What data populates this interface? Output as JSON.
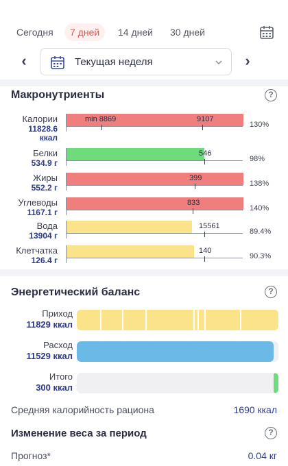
{
  "tabs": [
    {
      "label": "Сегодня"
    },
    {
      "label": "7 дней"
    },
    {
      "label": "14 дней"
    },
    {
      "label": "30 дней"
    }
  ],
  "week_selector": {
    "label": "Текущая неделя"
  },
  "macros": {
    "title": "Макронутриенты",
    "rows": [
      {
        "name": "Калории",
        "value_line1": "11828.6",
        "value_line2": "ккал",
        "min_label": "min 8869",
        "target": "9107",
        "percent": "130%",
        "fill_fraction": 1.0,
        "color": "#ef7e7c"
      },
      {
        "name": "Белки",
        "value_line1": "534.9 г",
        "value_line2": "",
        "min_label": "",
        "target": "546",
        "percent": "98%",
        "fill_fraction": 0.78,
        "color": "#6fdc7c"
      },
      {
        "name": "Жиры",
        "value_line1": "552.2 г",
        "value_line2": "",
        "min_label": "",
        "target": "399",
        "percent": "138%",
        "fill_fraction": 1.0,
        "color": "#ef7e7c"
      },
      {
        "name": "Углеводы",
        "value_line1": "1167.1 г",
        "value_line2": "",
        "min_label": "",
        "target": "833",
        "percent": "140%",
        "fill_fraction": 1.0,
        "color": "#ef7e7c"
      },
      {
        "name": "Вода",
        "value_line1": "13904 г",
        "value_line2": "",
        "min_label": "",
        "target": "15561",
        "percent": "89.4%",
        "fill_fraction": 0.71,
        "color": "#fbe38a"
      },
      {
        "name": "Клетчатка",
        "value_line1": "126.4 г",
        "value_line2": "",
        "min_label": "",
        "target": "140",
        "percent": "90.3%",
        "fill_fraction": 0.72,
        "color": "#fbe38a"
      }
    ]
  },
  "energy": {
    "title": "Энергетический баланс",
    "rows": [
      {
        "name": "Приход",
        "value": "11829 ккал",
        "fill_fraction": 1.0
      },
      {
        "name": "Расход",
        "value": "11529 ккал",
        "fill_fraction": 0.975
      },
      {
        "name": "Итого",
        "value": "300 ккал",
        "fill_fraction": 0.025
      }
    ]
  },
  "avg_calorie": {
    "label": "Средняя калорийность рациона",
    "value": "1690 ккал"
  },
  "weight_change": {
    "title": "Изменение веса за период",
    "forecast_label": "Прогноз*",
    "forecast_value": "0.04 кг"
  }
}
